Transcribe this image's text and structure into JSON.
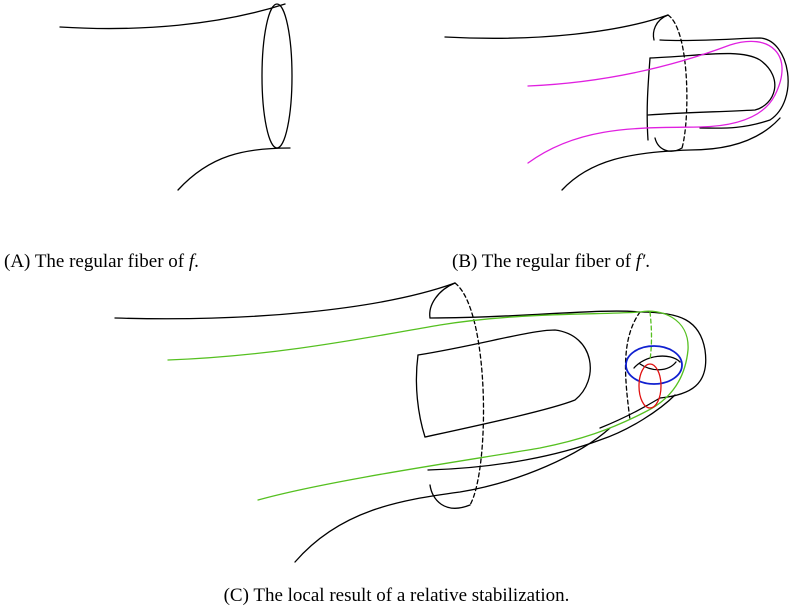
{
  "figure": {
    "subfigures": [
      {
        "label": "(A)",
        "text": "The regular fiber of",
        "symbol": "f",
        "end": "."
      },
      {
        "label": "(B)",
        "text": "The regular fiber of",
        "symbol": "f′",
        "end": "."
      },
      {
        "label": "(C)",
        "text": "The local result of a relative stabilization."
      }
    ]
  }
}
